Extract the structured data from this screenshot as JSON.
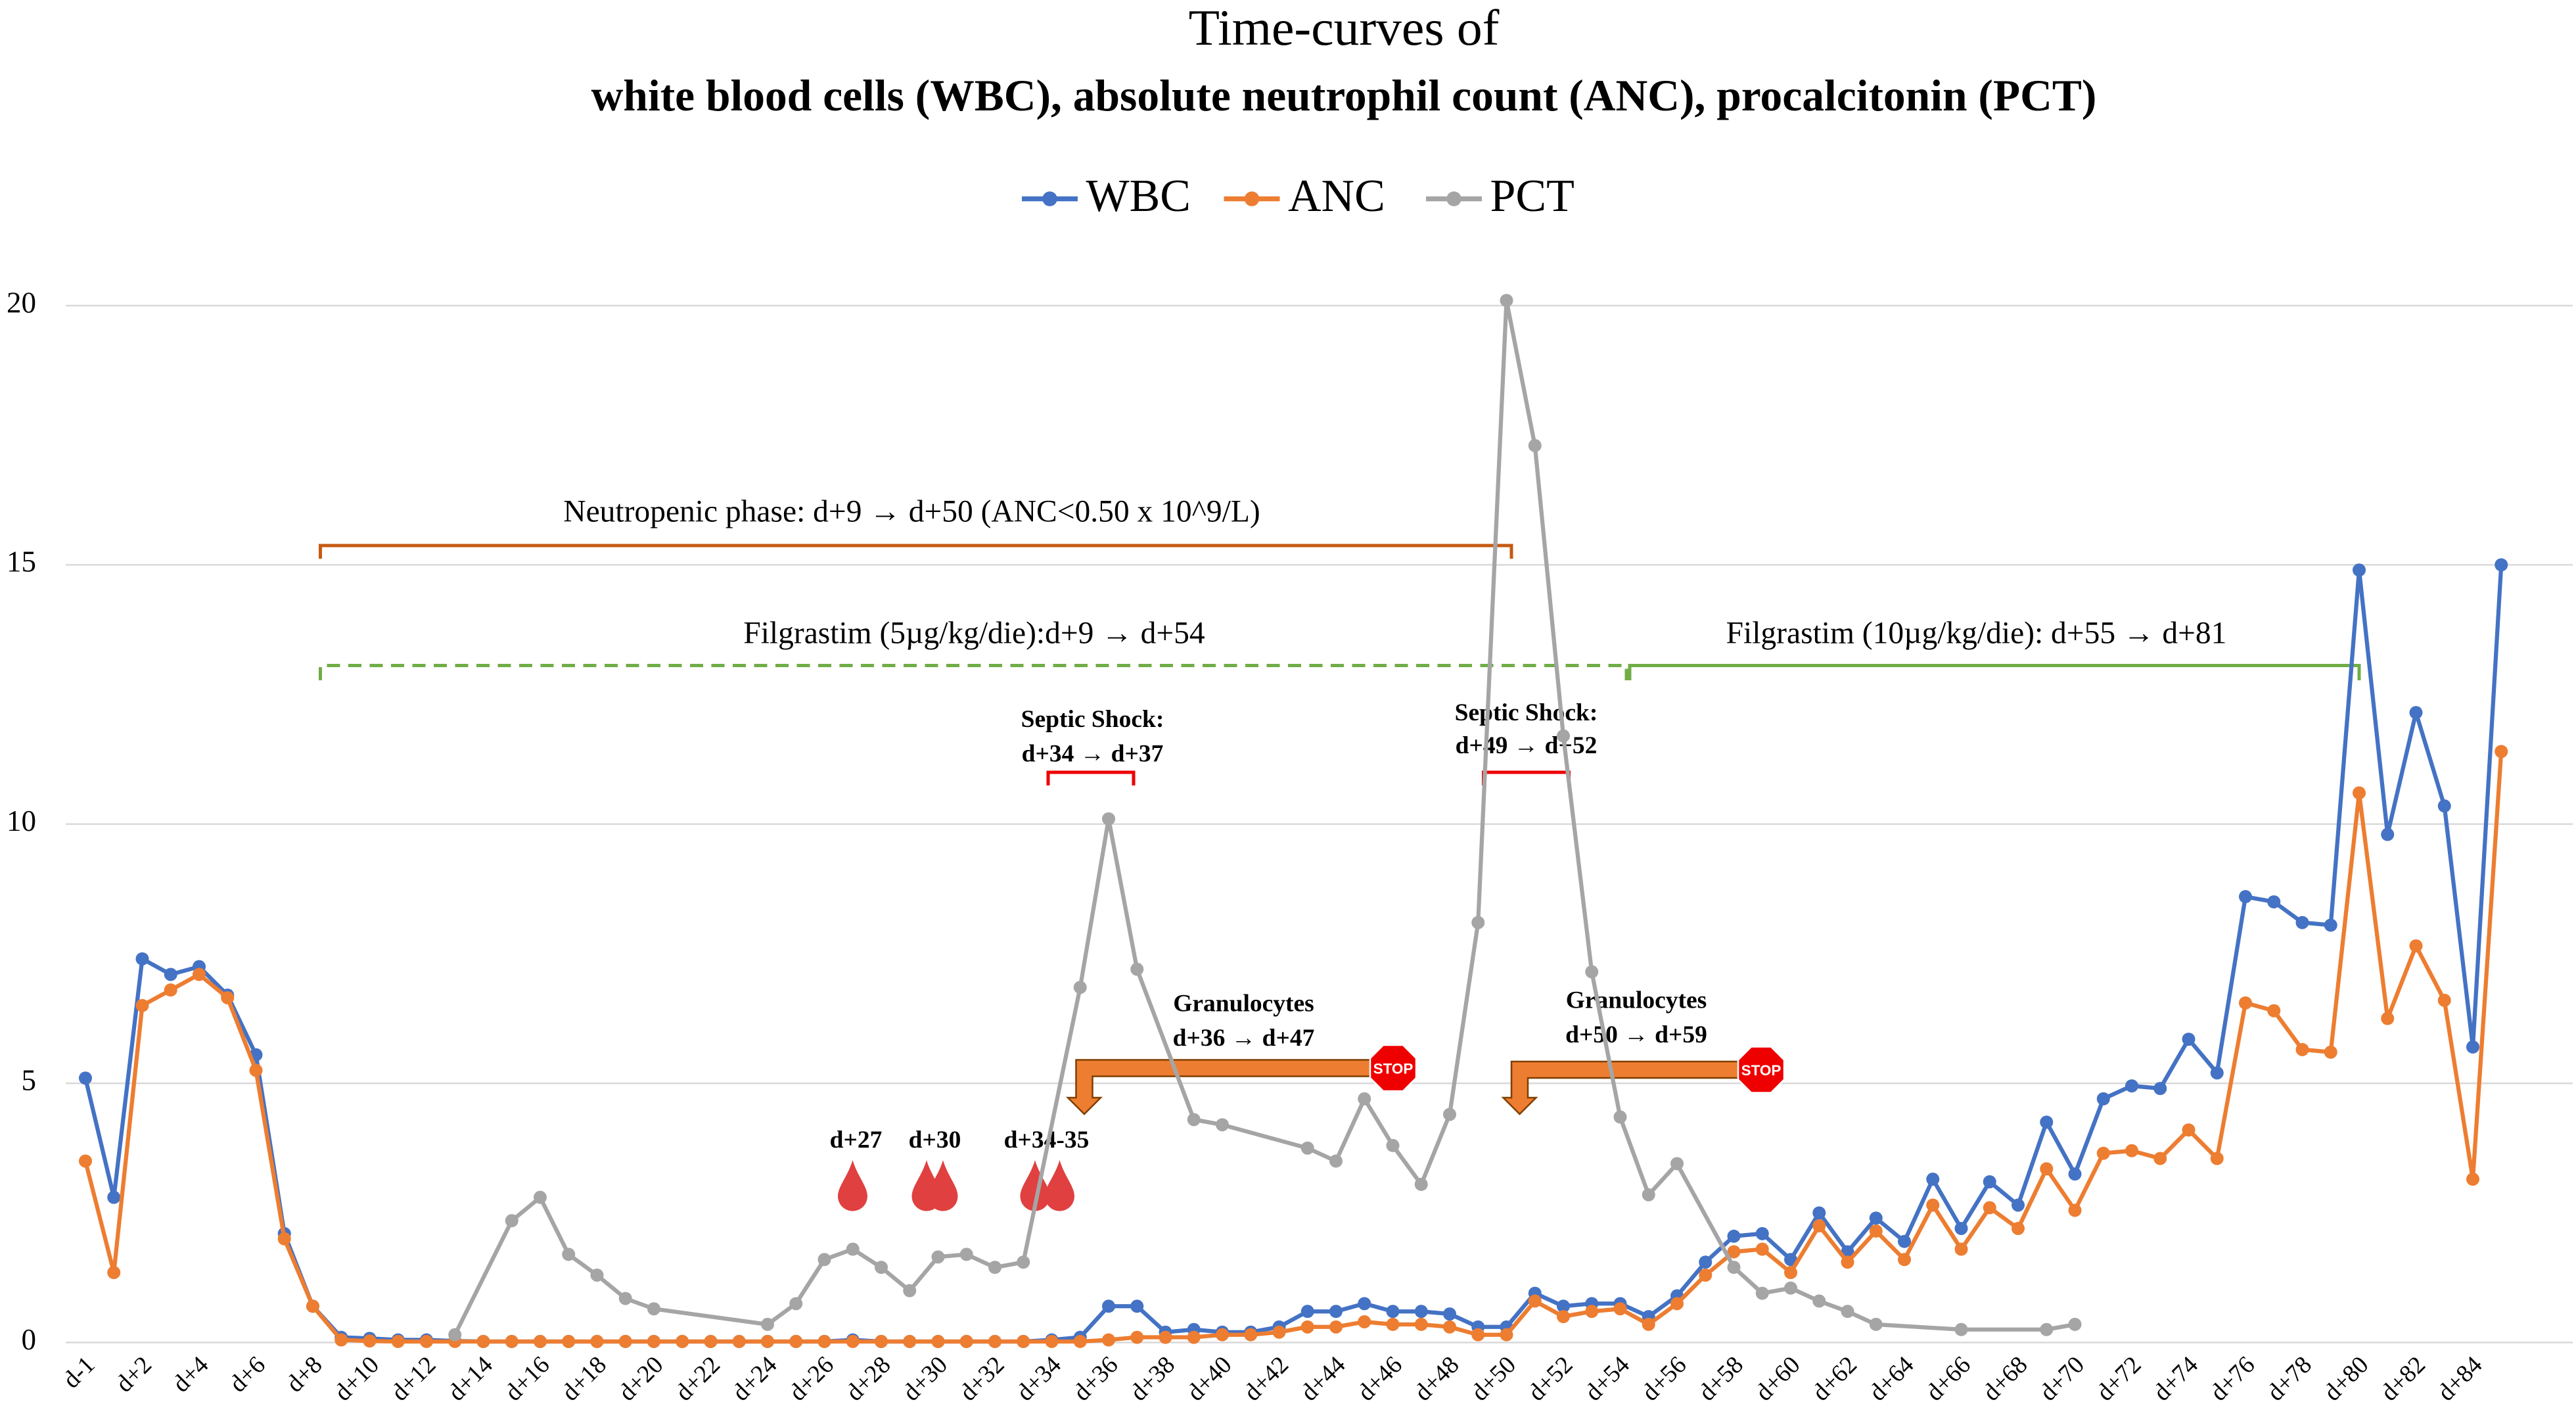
{
  "chart_data": {
    "type": "line",
    "title": "Time-curves of",
    "subtitle": "white blood cells (WBC), absolute neutrophil count (ANC), procalcitonin (PCT)",
    "categories": [
      "d-1",
      null,
      "d+2",
      null,
      "d+4",
      null,
      "d+6",
      null,
      "d+8",
      null,
      "d+10",
      null,
      "d+12",
      null,
      "d+14",
      null,
      "d+16",
      null,
      "d+18",
      null,
      "d+20",
      null,
      "d+22",
      null,
      "d+24",
      null,
      "d+26",
      null,
      "d+28",
      null,
      "d+30",
      null,
      "d+32",
      null,
      "d+34",
      null,
      "d+36",
      null,
      "d+38",
      null,
      "d+40",
      null,
      "d+42",
      null,
      "d+44",
      null,
      "d+46",
      null,
      "d+48",
      null,
      "d+50",
      null,
      "d+52",
      null,
      "d+54",
      null,
      "d+56",
      null,
      "d+58",
      null,
      "d+60",
      null,
      "d+62",
      null,
      "d+64",
      null,
      "d+66",
      null,
      "d+68",
      null,
      "d+70",
      null,
      "d+72",
      null,
      "d+74",
      null,
      "d+76",
      null,
      "d+78",
      null,
      "d+80",
      null,
      "d+82",
      null,
      "d+84",
      null
    ],
    "series": [
      {
        "name": "WBC",
        "color": "#4472c4",
        "values": [
          5.1,
          2.8,
          7.4,
          7.1,
          7.25,
          6.7,
          5.55,
          2.1,
          0.7,
          0.1,
          0.08,
          0.05,
          0.05,
          0.03,
          0.02,
          0.02,
          0.02,
          0.02,
          0.02,
          0.02,
          0.02,
          0.02,
          0.02,
          0.02,
          0.02,
          0.02,
          0.02,
          0.05,
          0.02,
          0.02,
          0.02,
          0.02,
          0.02,
          0.02,
          0.05,
          0.1,
          0.7,
          0.7,
          0.2,
          0.25,
          0.2,
          0.2,
          0.3,
          0.6,
          0.6,
          0.75,
          0.6,
          0.6,
          0.55,
          0.3,
          0.3,
          0.95,
          0.7,
          0.75,
          0.75,
          0.5,
          0.9,
          1.55,
          2.05,
          2.1,
          1.6,
          2.5,
          1.75,
          2.4,
          1.95,
          3.15,
          2.2,
          3.1,
          2.65,
          4.25,
          3.25,
          4.7,
          4.95,
          4.9,
          5.85,
          5.2,
          8.6,
          8.5,
          8.1,
          8.05,
          14.9,
          9.8,
          12.15,
          10.35,
          5.7,
          15.0
        ]
      },
      {
        "name": "ANC",
        "color": "#ed7d31",
        "values": [
          3.5,
          1.35,
          6.5,
          6.8,
          7.1,
          6.65,
          5.25,
          2.0,
          0.7,
          0.05,
          0.03,
          0.02,
          0.02,
          0.02,
          0.02,
          0.02,
          0.02,
          0.02,
          0.02,
          0.02,
          0.02,
          0.02,
          0.02,
          0.02,
          0.02,
          0.02,
          0.02,
          0.02,
          0.02,
          0.02,
          0.02,
          0.02,
          0.02,
          0.02,
          0.02,
          0.02,
          0.05,
          0.1,
          0.1,
          0.1,
          0.15,
          0.15,
          0.2,
          0.3,
          0.3,
          0.4,
          0.35,
          0.35,
          0.3,
          0.15,
          0.15,
          0.8,
          0.5,
          0.6,
          0.65,
          0.35,
          0.75,
          1.3,
          1.75,
          1.8,
          1.35,
          2.25,
          1.55,
          2.15,
          1.6,
          2.65,
          1.8,
          2.6,
          2.2,
          3.35,
          2.55,
          3.65,
          3.7,
          3.55,
          4.1,
          3.55,
          6.55,
          6.4,
          5.65,
          5.6,
          10.6,
          6.25,
          7.65,
          6.6,
          3.15,
          11.4
        ]
      },
      {
        "name": "PCT",
        "color": "#a5a5a5",
        "values": [
          null,
          null,
          null,
          null,
          null,
          null,
          null,
          null,
          null,
          null,
          null,
          null,
          null,
          0.15,
          null,
          2.35,
          2.8,
          1.7,
          1.3,
          0.85,
          0.65,
          null,
          null,
          null,
          0.35,
          0.75,
          1.6,
          1.8,
          1.45,
          1.0,
          1.65,
          1.7,
          1.45,
          1.55,
          null,
          6.85,
          10.1,
          7.2,
          null,
          4.3,
          4.2,
          null,
          null,
          3.75,
          3.5,
          4.7,
          3.8,
          3.05,
          4.4,
          8.1,
          20.1,
          17.3,
          11.7,
          7.15,
          4.35,
          2.85,
          3.45,
          null,
          1.45,
          0.95,
          1.05,
          0.8,
          0.6,
          0.35,
          null,
          null,
          0.25,
          null,
          null,
          0.25,
          0.35,
          null,
          null,
          null,
          null,
          null,
          null,
          null,
          null,
          null,
          null,
          null,
          null,
          null,
          null,
          null
        ]
      }
    ],
    "ylim": [
      0,
      20
    ],
    "yticks": [
      0,
      5,
      10,
      15,
      20
    ],
    "grid": true,
    "connect_gaps": true,
    "legend": "top",
    "annotations": [
      "Neutropenic phase: d+9 → d+50 (ANC<0.50 x 10^9/L)",
      "Filgrastim (5µg/kg/die):d+9 → d+54",
      "Filgrastim (10µg/kg/die): d+55 → d+81",
      "Septic Shock:",
      "d+34 → d+37",
      "Septic Shock:",
      "d+49 → d+52",
      "Granulocytes",
      "d+36 → d+47",
      "Granulocytes",
      "d+50 → d+59",
      "d+27",
      "d+30",
      "d+34-35",
      "STOP",
      "STOP"
    ]
  }
}
